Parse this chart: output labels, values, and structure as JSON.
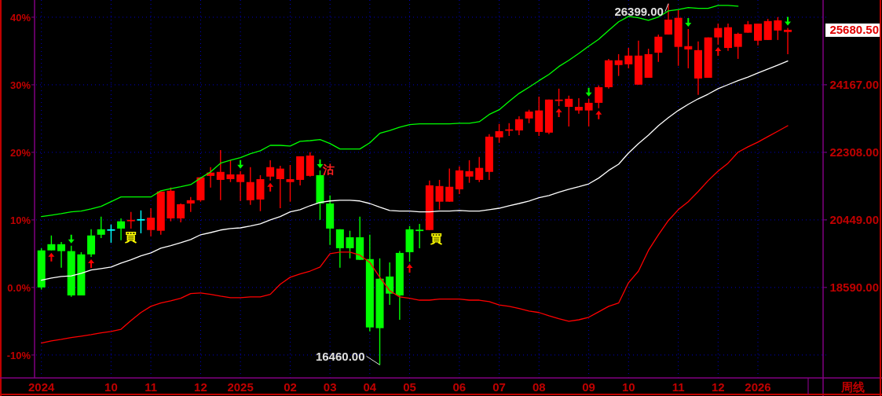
{
  "chart_data": {
    "type": "candlestick",
    "categories": [
      "2024",
      null,
      null,
      null,
      null,
      null,
      null,
      "10",
      null,
      null,
      null,
      "11",
      null,
      null,
      null,
      null,
      "12",
      null,
      null,
      null,
      "2025",
      null,
      null,
      null,
      null,
      "02",
      null,
      null,
      null,
      "03",
      null,
      null,
      null,
      "04",
      null,
      null,
      null,
      "05",
      null,
      null,
      null,
      null,
      "06",
      null,
      null,
      null,
      "07",
      null,
      null,
      null,
      "08",
      null,
      null,
      null,
      null,
      "09",
      null,
      null,
      null,
      "10",
      null,
      null,
      null,
      null,
      "11",
      null,
      null,
      null,
      "12",
      null,
      null,
      null,
      "2026",
      null,
      null,
      null
    ],
    "ohlc": [
      [
        19610,
        19670,
        18530,
        18590
      ],
      [
        19780,
        20020,
        19610,
        19610
      ],
      [
        19780,
        19840,
        19130,
        19590
      ],
      [
        19590,
        19740,
        18330,
        18370
      ],
      [
        19500,
        19560,
        18370,
        18370
      ],
      [
        20020,
        20190,
        19430,
        19500
      ],
      [
        20190,
        20540,
        19950,
        20040
      ],
      [
        20190,
        20320,
        19820,
        20190
      ],
      [
        20410,
        20490,
        19890,
        20210
      ],
      [
        20440,
        20670,
        20210,
        20450
      ],
      [
        20470,
        20710,
        20080,
        20470
      ],
      [
        20170,
        20770,
        20000,
        20510
      ],
      [
        20150,
        21230,
        20040,
        21230
      ],
      [
        20490,
        21340,
        20410,
        21250
      ],
      [
        20490,
        20900,
        20380,
        20880
      ],
      [
        20900,
        21080,
        20670,
        20990
      ],
      [
        20990,
        21620,
        20950,
        21620
      ],
      [
        21660,
        21900,
        21340,
        21750
      ],
      [
        21550,
        22370,
        20990,
        21770
      ],
      [
        21570,
        22090,
        21490,
        21700
      ],
      [
        21490,
        21790,
        20970,
        21700
      ],
      [
        20990,
        21900,
        20860,
        21490
      ],
      [
        21010,
        21680,
        20690,
        21570
      ],
      [
        21640,
        22090,
        21530,
        21900
      ],
      [
        21570,
        21940,
        20770,
        21860
      ],
      [
        21490,
        21960,
        20950,
        21570
      ],
      [
        21550,
        22200,
        21400,
        22200
      ],
      [
        21660,
        22310,
        21640,
        22220
      ],
      [
        21680,
        21810,
        20450,
        20900
      ],
      [
        20900,
        21120,
        19760,
        20210
      ],
      [
        20190,
        20190,
        19130,
        19670
      ],
      [
        19970,
        20150,
        19390,
        19670
      ],
      [
        19970,
        20540,
        19350,
        19350
      ],
      [
        19370,
        20040,
        17380,
        17490
      ],
      [
        18830,
        19390,
        16460,
        17470
      ],
      [
        18890,
        19280,
        18110,
        18420
      ],
      [
        19540,
        19590,
        17700,
        18370
      ],
      [
        20190,
        20280,
        19300,
        19560
      ],
      [
        20180,
        20340,
        19670,
        20170
      ],
      [
        20170,
        21530,
        20170,
        21400
      ],
      [
        20950,
        21550,
        20730,
        21380
      ],
      [
        20950,
        21860,
        20950,
        21360
      ],
      [
        21290,
        21920,
        21160,
        21810
      ],
      [
        21640,
        22090,
        21470,
        21790
      ],
      [
        21550,
        22180,
        21490,
        21880
      ],
      [
        21770,
        22810,
        21550,
        22740
      ],
      [
        22720,
        23090,
        22570,
        22890
      ],
      [
        22930,
        23110,
        22760,
        22940
      ],
      [
        22910,
        23300,
        22780,
        23220
      ],
      [
        23240,
        23480,
        23110,
        23430
      ],
      [
        22870,
        23840,
        22760,
        23460
      ],
      [
        22850,
        23760,
        22810,
        23760
      ],
      [
        23750,
        24060,
        23580,
        23760
      ],
      [
        23560,
        23870,
        23020,
        23780
      ],
      [
        23460,
        23800,
        23370,
        23560
      ],
      [
        23460,
        23780,
        23020,
        23670
      ],
      [
        23670,
        24150,
        23520,
        24100
      ],
      [
        24100,
        24880,
        24060,
        24840
      ],
      [
        24710,
        25010,
        24410,
        24840
      ],
      [
        24730,
        25180,
        24620,
        24970
      ],
      [
        24170,
        25380,
        24170,
        24970
      ],
      [
        24360,
        25160,
        24360,
        25010
      ],
      [
        25050,
        25550,
        24800,
        25490
      ],
      [
        25550,
        26399,
        25550,
        25960
      ],
      [
        25210,
        26220,
        24690,
        26010
      ],
      [
        25140,
        25700,
        24620,
        25230
      ],
      [
        24340,
        25360,
        23890,
        25120
      ],
      [
        24360,
        25470,
        24360,
        25470
      ],
      [
        25470,
        25850,
        25270,
        25730
      ],
      [
        25180,
        25850,
        25100,
        25750
      ],
      [
        25210,
        25600,
        24880,
        25570
      ],
      [
        25600,
        25920,
        25600,
        25830
      ],
      [
        25380,
        25850,
        25250,
        25850
      ],
      [
        25400,
        25980,
        25400,
        25920
      ],
      [
        25660,
        26030,
        25400,
        25940
      ],
      [
        25620,
        25730,
        25010,
        25680.5
      ]
    ],
    "colors": [
      "#00ff00",
      "#00ff00",
      "#00ff00",
      "#00ff00",
      "#00ff00",
      "#00ff00",
      "#00ff00",
      "#00ffff",
      "#00ff00",
      "#ff0000",
      "#00ffff",
      "#ff0000",
      "#ff0000",
      "#ff0000",
      "#ff0000",
      "#ff0000",
      "#ff0000",
      "#ff0000",
      "#ff0000",
      "#ff0000",
      "#ff0000",
      "#ff0000",
      "#ff0000",
      "#ff0000",
      "#ff0000",
      "#ff0000",
      "#ff0000",
      "#ff0000",
      "#00ff00",
      "#00ff00",
      "#00ff00",
      "#00ff00",
      "#00ff00",
      "#00ff00",
      "#00ff00",
      "#00ff00",
      "#00ff00",
      "#00ff00",
      "#00ff00",
      "#ff0000",
      "#ff0000",
      "#ff0000",
      "#ff0000",
      "#ff0000",
      "#ff0000",
      "#ff0000",
      "#ff0000",
      "#ff0000",
      "#ff0000",
      "#ff0000",
      "#ff0000",
      "#ff0000",
      "#ff0000",
      "#ff0000",
      "#ff0000",
      "#ff0000",
      "#ff0000",
      "#ff0000",
      "#ff0000",
      "#ff0000",
      "#ff0000",
      "#ff0000",
      "#ff0000",
      "#ff0000",
      "#ff0000",
      "#ff0000",
      "#ff0000",
      "#ff0000",
      "#ff0000",
      "#ff0000",
      "#ff0000",
      "#ff0000",
      "#ff0000",
      "#ff0000",
      "#ff0000",
      "#ff0000"
    ],
    "series": [
      {
        "type": "line",
        "color": "#00ff00",
        "values": [
          20540,
          20580,
          20620,
          20670,
          20690,
          20750,
          20820,
          20950,
          21080,
          21080,
          21080,
          21080,
          21250,
          21310,
          21360,
          21420,
          21600,
          21770,
          22010,
          22090,
          22160,
          22270,
          22350,
          22500,
          22500,
          22480,
          22610,
          22630,
          22660,
          22550,
          22400,
          22400,
          22400,
          22570,
          22830,
          22910,
          23000,
          23070,
          23090,
          23090,
          23090,
          23090,
          23110,
          23110,
          23150,
          23350,
          23480,
          23710,
          23930,
          24100,
          24280,
          24450,
          24670,
          24840,
          25030,
          25230,
          25420,
          25660,
          25900,
          26050,
          26010,
          25940,
          26030,
          26200,
          26240,
          26290,
          26270,
          26270,
          26350,
          26350,
          26330,
          null,
          null,
          null,
          null,
          null
        ]
      },
      {
        "type": "line",
        "color": "#ffffff",
        "values": [
          18790,
          18850,
          18890,
          18910,
          18980,
          19070,
          19110,
          19150,
          19260,
          19350,
          19460,
          19540,
          19670,
          19740,
          19820,
          19910,
          20040,
          20100,
          20170,
          20210,
          20230,
          20280,
          20340,
          20450,
          20540,
          20670,
          20730,
          20840,
          20930,
          20970,
          20990,
          20990,
          20970,
          20900,
          20800,
          20710,
          20690,
          20690,
          20670,
          20670,
          20690,
          20690,
          20710,
          20690,
          20690,
          20730,
          20770,
          20840,
          20900,
          20970,
          21060,
          21120,
          21210,
          21290,
          21360,
          21440,
          21600,
          21810,
          21980,
          22290,
          22550,
          22780,
          23040,
          23260,
          23460,
          23630,
          23780,
          23910,
          24060,
          24170,
          24280,
          24380,
          24490,
          24600,
          24710,
          24820
        ]
      },
      {
        "type": "line",
        "color": "#ff0000",
        "values": [
          17060,
          17120,
          17160,
          17210,
          17250,
          17290,
          17340,
          17380,
          17440,
          17680,
          17900,
          18070,
          18160,
          18220,
          18290,
          18420,
          18440,
          18400,
          18350,
          18310,
          18310,
          18330,
          18330,
          18400,
          18680,
          18870,
          18960,
          19040,
          19150,
          19520,
          19560,
          19560,
          19480,
          19280,
          18870,
          18500,
          18330,
          18290,
          18240,
          18240,
          18270,
          18270,
          18270,
          18240,
          18240,
          18200,
          18110,
          18070,
          18010,
          17940,
          17900,
          17810,
          17730,
          17660,
          17700,
          17770,
          17920,
          18070,
          18160,
          18720,
          19040,
          19610,
          20040,
          20430,
          20730,
          20950,
          21230,
          21530,
          21790,
          22010,
          22310,
          22460,
          22590,
          22740,
          22890,
          23040
        ]
      }
    ],
    "ylim": [
      16100,
      26500
    ],
    "yticks": [
      {
        "value": 18590,
        "label": "18590.00"
      },
      {
        "value": 20449,
        "label": "20449.00"
      },
      {
        "value": 22308,
        "label": "22308.00"
      },
      {
        "value": 24167,
        "label": "24167.00"
      }
    ],
    "y2lim": [
      -13.39,
      42.55
    ],
    "y2ticks": [
      {
        "value": -10,
        "label": "-10%"
      },
      {
        "value": 0,
        "label": "0.0%"
      },
      {
        "value": 10,
        "label": "10%"
      },
      {
        "value": 20,
        "label": "20%"
      },
      {
        "value": 30,
        "label": "30%"
      },
      {
        "value": 40,
        "label": "40%"
      }
    ],
    "grid": true,
    "annotations": [
      "26399.00",
      "16460.00",
      "25680.50",
      "買",
      "沽",
      "買",
      "周线"
    ]
  }
}
